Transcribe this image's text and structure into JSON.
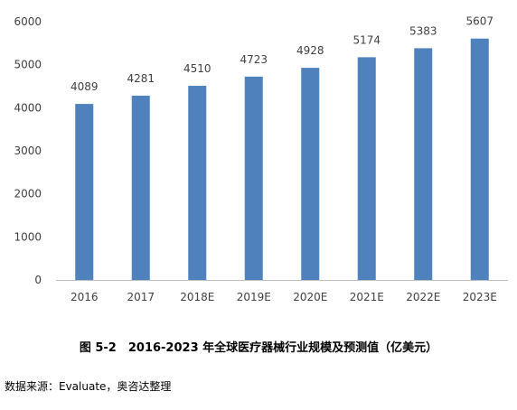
{
  "chart_data": {
    "type": "bar",
    "categories": [
      "2016",
      "2017",
      "2018E",
      "2019E",
      "2020E",
      "2021E",
      "2022E",
      "2023E"
    ],
    "values": [
      4089,
      4281,
      4510,
      4723,
      4928,
      5174,
      5383,
      5607
    ],
    "ylim": [
      0,
      6000
    ],
    "yticks": [
      "0",
      "1000",
      "2000",
      "3000",
      "4000",
      "5000",
      "6000"
    ],
    "grid": false,
    "legend": "none",
    "bar_color": "#4f81bd",
    "axis_color": "#bfbfbf",
    "label_color": "#404040"
  },
  "caption": "图 5-2　2016-2023 年全球医疗器械行业规模及预测值（亿美元）",
  "source": "数据来源：Evaluate，奥咨达整理"
}
